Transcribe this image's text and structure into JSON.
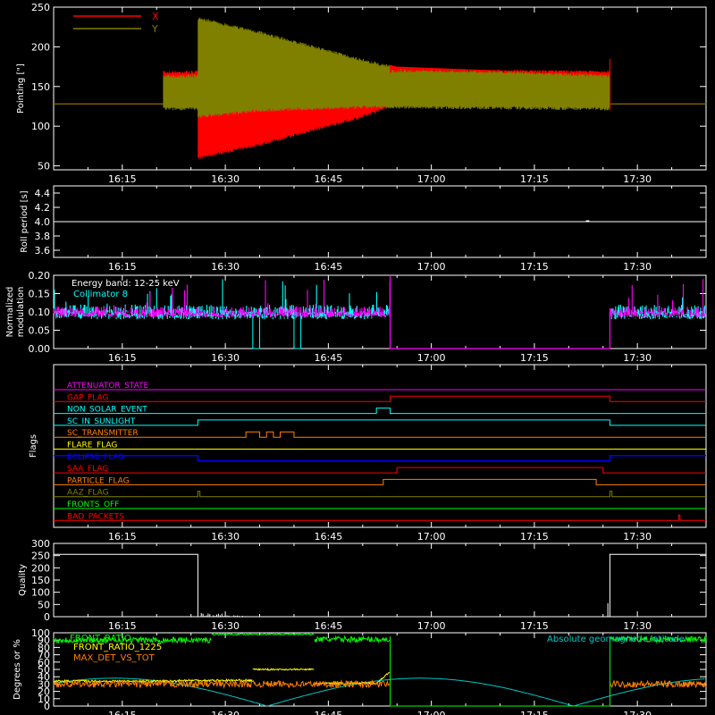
{
  "time_ticks": [
    "16:15",
    "16:30",
    "16:45",
    "17:00",
    "17:15",
    "17:30"
  ],
  "colors": {
    "background": "#000000",
    "axes": "#ffffff",
    "red": "#ff0000",
    "olive": "#808000",
    "magenta": "#ff00ff",
    "cyan": "#00ffff",
    "blue": "#0000ff",
    "yellow": "#ffff00",
    "orange": "#ff8000",
    "green": "#00ff00",
    "light_blue": "#00c8c8"
  },
  "chart_data": [
    {
      "id": "pointing",
      "type": "line",
      "ylabel": "Pointing [\"]",
      "ylim": [
        45,
        250
      ],
      "yticks": [
        50,
        100,
        150,
        200,
        250
      ],
      "legend": [
        "X",
        "Y"
      ],
      "legend_placement": "top-left",
      "series": [
        {
          "name": "X",
          "color": "red",
          "baseline": 128,
          "oscillation_start": "16:21",
          "oscillation_end": "17:21",
          "envelope_upper": [
            [
              21,
              128
            ],
            [
              30,
              145
            ],
            [
              45,
              165
            ],
            [
              50,
              172
            ],
            [
              81,
              170
            ]
          ],
          "envelope_lower": [
            [
              21,
              58
            ],
            [
              30,
              75
            ],
            [
              45,
              110
            ],
            [
              50,
              128
            ],
            [
              81,
              130
            ]
          ]
        },
        {
          "name": "Y",
          "color": "olive",
          "baseline": 128,
          "oscillation_start": "16:21",
          "oscillation_end": "17:21",
          "envelope_upper": [
            [
              21,
              238
            ],
            [
              30,
              220
            ],
            [
              45,
              185
            ],
            [
              50,
              175
            ],
            [
              81,
              165
            ]
          ],
          "envelope_lower": [
            [
              21,
              110
            ],
            [
              30,
              118
            ],
            [
              45,
              122
            ],
            [
              50,
              122
            ],
            [
              81,
              120
            ]
          ]
        }
      ]
    },
    {
      "id": "roll",
      "type": "line",
      "ylabel": "Roll period [s]",
      "ylim": [
        3.5,
        4.5
      ],
      "yticks": [
        3.6,
        3.8,
        4.0,
        4.2,
        4.4
      ],
      "series": [
        {
          "color": "white",
          "value": 4.0
        }
      ]
    },
    {
      "id": "modulation",
      "type": "line",
      "ylabel": "Normalized modulation",
      "ylim": [
        0,
        0.2
      ],
      "yticks": [
        "0.00",
        "0.05",
        "0.10",
        "0.15",
        "0.20"
      ],
      "annotations": [
        "Energy band: 12-25 keV",
        "Collimator 8"
      ],
      "series": [
        {
          "color": "magenta",
          "mean": 0.1,
          "spread": 0.015,
          "active": [
            [
              0,
              49
            ],
            [
              81,
              95
            ]
          ]
        },
        {
          "color": "cyan",
          "mean": 0.1,
          "spread": 0.02,
          "active": [
            [
              0,
              49
            ],
            [
              81,
              95
            ]
          ],
          "gaps": [
            [
              29,
              30
            ],
            [
              35,
              36
            ]
          ]
        }
      ]
    },
    {
      "id": "flags",
      "type": "line",
      "ylabel": "Flags",
      "flags": [
        {
          "name": "ATTENUATOR_STATE",
          "color": "magenta",
          "on": []
        },
        {
          "name": "SAA_FLAG_2",
          "label": "GAP_FLAG",
          "color": "red",
          "on": [
            [
              49,
              81
            ]
          ]
        },
        {
          "name": "NON_SOLAR_EVENT",
          "color": "cyan",
          "on": [
            [
              47,
              49
            ]
          ]
        },
        {
          "name": "SC_IN_SUNLIGHT",
          "color": "cyan",
          "on": [
            [
              21,
              81
            ]
          ]
        },
        {
          "name": "SC_TRANSMITTER",
          "color": "orange",
          "on": [
            [
              28,
              30
            ],
            [
              31,
              32
            ],
            [
              33,
              35
            ]
          ]
        },
        {
          "name": "FLARE_FLAG",
          "color": "yellow",
          "on": []
        },
        {
          "name": "ECLIPSE_FLAG",
          "color": "blue",
          "on": [
            [
              0,
              21
            ],
            [
              81,
              95
            ]
          ]
        },
        {
          "name": "SAA_FLAG",
          "color": "red",
          "on": [
            [
              50,
              80
            ]
          ]
        },
        {
          "name": "PARTICLE_FLAG",
          "color": "orange",
          "on": [
            [
              48,
              79
            ]
          ]
        },
        {
          "name": "AAZ_FLAG",
          "color": "olive",
          "on": [
            [
              21,
              21.3
            ],
            [
              81,
              81.3
            ]
          ]
        },
        {
          "name": "FRONTS_OFF",
          "color": "green",
          "on": []
        },
        {
          "name": "BAD_PACKETS",
          "color": "red",
          "on": [
            [
              91,
              91.2
            ]
          ]
        }
      ]
    },
    {
      "id": "quality",
      "type": "line",
      "ylabel": "Quality",
      "ylim": [
        0,
        300
      ],
      "yticks": [
        0,
        50,
        100,
        150,
        200,
        250,
        300
      ],
      "series": [
        {
          "color": "white",
          "segments": [
            [
              [
                0,
                255
              ],
              [
                21,
                255
              ],
              [
                21,
                0
              ]
            ],
            [
              [
                81,
                0
              ],
              [
                81,
                255
              ],
              [
                95,
                255
              ]
            ]
          ]
        }
      ]
    },
    {
      "id": "ratios",
      "type": "line",
      "ylabel": "Degrees or %",
      "ylim": [
        0,
        100
      ],
      "yticks": [
        0,
        10,
        20,
        30,
        40,
        50,
        60,
        70,
        80,
        90,
        100
      ],
      "legend": [
        "FRONT_RATIO",
        "FRONT_RATIO_1225",
        "MAX_DET_VS_TOT",
        "Absolute geomagnetic latitude"
      ],
      "series": [
        {
          "name": "FRONT_RATIO",
          "color": "green"
        },
        {
          "name": "FRONT_RATIO_1225",
          "color": "yellow"
        },
        {
          "name": "MAX_DET_VS_TOT",
          "color": "orange"
        },
        {
          "name": "Absolute geomagnetic latitude",
          "color": "light_blue"
        }
      ]
    }
  ],
  "flag_labels": [
    "ATTENUATOR_STATE",
    "GAP_FLAG",
    "NON_SOLAR_EVENT",
    "SC_IN_SUNLIGHT",
    "SC_TRANSMITTER",
    "FLARE_FLAG",
    "ECLIPSE_FLAG",
    "SAA_FLAG",
    "PARTICLE_FLAG",
    "AAZ_FLAG",
    "FRONTS_OFF",
    "BAD_PACKETS"
  ]
}
